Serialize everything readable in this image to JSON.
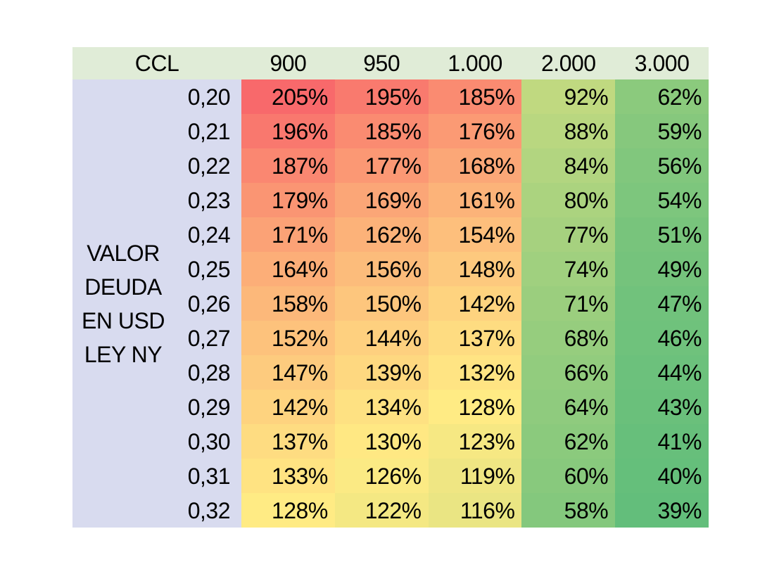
{
  "chart_data": {
    "type": "heatmap",
    "x_axis_title": "CCL",
    "y_axis_title": "VALOR DEUDA EN USD LEY NY",
    "y_axis_title_lines": [
      "VALOR",
      "DEUDA",
      "EN USD",
      "LEY NY"
    ],
    "column_labels": [
      "900",
      "950",
      "1.000",
      "2.000",
      "3.000"
    ],
    "row_labels": [
      "0,20",
      "0,21",
      "0,22",
      "0,23",
      "0,24",
      "0,25",
      "0,26",
      "0,27",
      "0,28",
      "0,29",
      "0,30",
      "0,31",
      "0,32"
    ],
    "value_suffix": "%",
    "values_percent": [
      [
        205,
        195,
        185,
        92,
        62
      ],
      [
        196,
        185,
        176,
        88,
        59
      ],
      [
        187,
        177,
        168,
        84,
        56
      ],
      [
        179,
        169,
        161,
        80,
        54
      ],
      [
        171,
        162,
        154,
        77,
        51
      ],
      [
        164,
        156,
        148,
        74,
        49
      ],
      [
        158,
        150,
        142,
        71,
        47
      ],
      [
        152,
        144,
        137,
        68,
        46
      ],
      [
        147,
        139,
        132,
        66,
        44
      ],
      [
        142,
        134,
        128,
        64,
        43
      ],
      [
        137,
        130,
        123,
        62,
        41
      ],
      [
        133,
        126,
        119,
        60,
        40
      ],
      [
        128,
        122,
        116,
        58,
        39
      ]
    ],
    "color_scale": {
      "min": {
        "value": 39,
        "color": "#63be7b"
      },
      "mid": {
        "value": 128,
        "color": "#ffeb84"
      },
      "max": {
        "value": 205,
        "color": "#f8696b"
      }
    },
    "legend": "none",
    "grid": "off"
  },
  "colors": {
    "page_bg": "#ffffff",
    "header_bg": "#e0ecd7",
    "row_label_bg": "#d8dbef",
    "text": "#000000"
  }
}
